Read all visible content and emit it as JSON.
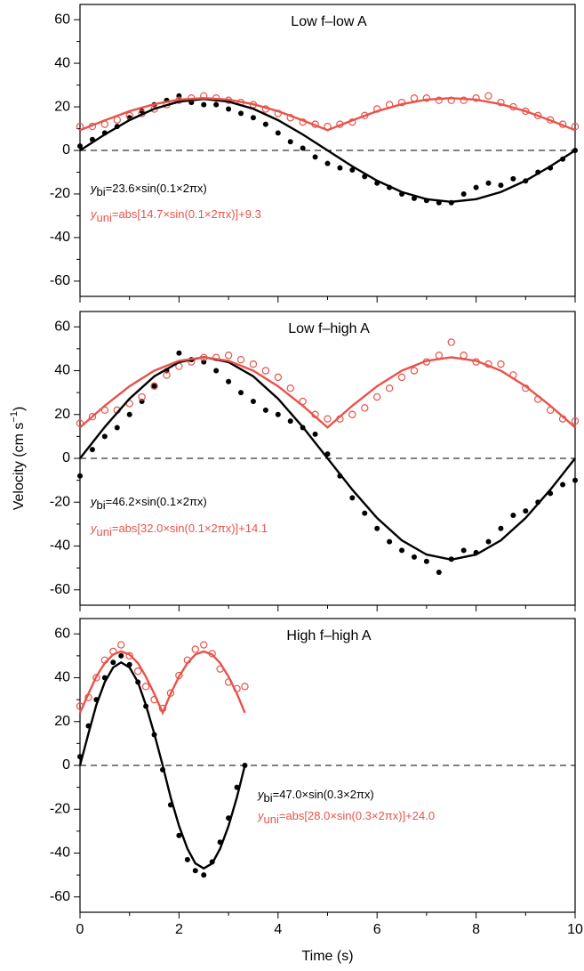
{
  "chart_data": [
    {
      "type": "scatter",
      "title": "Low f–low A",
      "xlim": [
        0,
        10
      ],
      "xticks": [
        0,
        2,
        4,
        6,
        8,
        10
      ],
      "ylim": [
        -67,
        67
      ],
      "yticks": [
        -60,
        -40,
        -20,
        0,
        20,
        40,
        60
      ],
      "annotations": [
        {
          "symbol": "y",
          "subscript": "bi",
          "text": "=23.6×sin(0.1×2πx)",
          "color": "#000000"
        },
        {
          "symbol": "y",
          "subscript": "uni",
          "text": "=abs[14.7×sin(0.1×2πx)]+9.3",
          "color": "#e8534a"
        }
      ],
      "series": [
        {
          "kind": "points",
          "marker": "filled",
          "color": "#000000",
          "x": [
            0,
            0.25,
            0.5,
            0.75,
            1,
            1.25,
            1.5,
            1.75,
            2,
            2.25,
            2.5,
            2.75,
            3,
            3.25,
            3.5,
            3.75,
            4,
            4.25,
            4.5,
            4.75,
            5,
            5.25,
            5.5,
            5.75,
            6,
            6.25,
            6.5,
            6.75,
            7,
            7.25,
            7.5,
            7.75,
            8,
            8.25,
            8.5,
            8.75,
            9,
            9.25,
            9.5,
            9.75,
            10
          ],
          "values": [
            2,
            5,
            8,
            11,
            15,
            18,
            21,
            23,
            25,
            22,
            21,
            21,
            19,
            17,
            15,
            12,
            8,
            4,
            1,
            -3,
            -6,
            -8,
            -9,
            -12,
            -15,
            -17,
            -20,
            -22,
            -23,
            -24,
            -24,
            -20,
            -17,
            -15,
            -16,
            -13,
            -14,
            -10,
            -8,
            -4,
            0
          ]
        },
        {
          "kind": "points",
          "marker": "open",
          "color": "#e8534a",
          "x": [
            0,
            0.25,
            0.5,
            0.75,
            1,
            1.25,
            1.5,
            1.75,
            2,
            2.25,
            2.5,
            2.75,
            3,
            3.25,
            3.5,
            3.75,
            4,
            4.25,
            4.5,
            4.75,
            5,
            5.25,
            5.5,
            5.75,
            6,
            6.25,
            6.5,
            6.75,
            7,
            7.25,
            7.5,
            7.75,
            8,
            8.25,
            8.5,
            8.75,
            9,
            9.25,
            9.5,
            9.75,
            10
          ],
          "values": [
            11,
            11,
            12,
            14,
            16,
            17,
            19,
            21,
            23,
            24,
            25,
            24,
            23,
            22,
            21,
            19,
            17,
            15,
            13,
            12,
            11,
            12,
            13,
            16,
            19,
            21,
            22,
            24,
            24,
            23,
            23,
            23,
            24,
            25,
            22,
            20,
            18,
            16,
            14,
            12,
            11
          ]
        },
        {
          "kind": "line",
          "color": "#000000",
          "x": [
            0,
            0.5,
            1,
            1.5,
            2,
            2.5,
            3,
            3.5,
            4,
            4.5,
            5,
            5.5,
            6,
            6.5,
            7,
            7.5,
            8,
            8.5,
            9,
            9.5,
            10
          ],
          "values": [
            0,
            7.3,
            13.9,
            19.1,
            22.4,
            23.6,
            22.4,
            19.1,
            13.9,
            7.3,
            0,
            -7.3,
            -13.9,
            -19.1,
            -22.4,
            -23.6,
            -22.4,
            -19.1,
            -13.9,
            -7.3,
            0
          ]
        },
        {
          "kind": "line",
          "color": "#e8534a",
          "x": [
            0,
            0.5,
            1,
            1.5,
            2,
            2.5,
            3,
            3.5,
            4,
            4.5,
            5,
            5.5,
            6,
            6.5,
            7,
            7.5,
            8,
            8.5,
            9,
            9.5,
            10
          ],
          "values": [
            9.3,
            13.8,
            18.0,
            21.2,
            23.3,
            24.0,
            23.3,
            21.2,
            18.0,
            13.8,
            9.3,
            13.8,
            18.0,
            21.2,
            23.3,
            24.0,
            23.3,
            21.2,
            18.0,
            13.8,
            9.3
          ]
        }
      ]
    },
    {
      "type": "scatter",
      "title": "Low f–high A",
      "xlim": [
        0,
        10
      ],
      "xticks": [
        0,
        2,
        4,
        6,
        8,
        10
      ],
      "ylim": [
        -67,
        67
      ],
      "yticks": [
        -60,
        -40,
        -20,
        0,
        20,
        40,
        60
      ],
      "annotations": [
        {
          "symbol": "y",
          "subscript": "bi",
          "text": "=46.2×sin(0.1×2πx)",
          "color": "#000000"
        },
        {
          "symbol": "y",
          "subscript": "uni",
          "text": "=abs[32.0×sin(0.1×2πx)]+14.1",
          "color": "#e8534a"
        }
      ],
      "series": [
        {
          "kind": "points",
          "marker": "filled",
          "color": "#000000",
          "x": [
            0,
            0.25,
            0.5,
            0.75,
            1,
            1.25,
            1.5,
            1.75,
            2,
            2.25,
            2.5,
            2.75,
            3,
            3.25,
            3.5,
            3.75,
            4,
            4.25,
            4.5,
            4.75,
            5,
            5.25,
            5.5,
            5.75,
            6,
            6.25,
            6.5,
            6.75,
            7,
            7.25,
            7.5,
            7.75,
            8,
            8.25,
            8.5,
            8.75,
            9,
            9.25,
            9.5,
            9.75,
            10
          ],
          "values": [
            -8,
            4,
            10,
            14,
            20,
            26,
            33,
            40,
            48,
            45,
            44,
            40,
            35,
            30,
            26,
            22,
            20,
            17,
            14,
            11,
            2,
            -8,
            -18,
            -25,
            -32,
            -38,
            -42,
            -45,
            -47,
            -52,
            -46,
            -42,
            -43,
            -38,
            -32,
            -26,
            -24,
            -20,
            -16,
            -12,
            -10
          ]
        },
        {
          "kind": "points",
          "marker": "open",
          "color": "#e8534a",
          "x": [
            0,
            0.25,
            0.5,
            0.75,
            1,
            1.25,
            1.5,
            1.75,
            2,
            2.25,
            2.5,
            2.75,
            3,
            3.25,
            3.5,
            3.75,
            4,
            4.25,
            4.5,
            4.75,
            5,
            5.25,
            5.5,
            5.75,
            6,
            6.25,
            6.5,
            6.75,
            7,
            7.25,
            7.5,
            7.75,
            8,
            8.25,
            8.5,
            8.75,
            9,
            9.25,
            9.5,
            9.75,
            10
          ],
          "values": [
            16,
            19,
            22,
            22,
            25,
            28,
            33,
            38,
            42,
            44,
            46,
            46,
            47,
            45,
            43,
            40,
            37,
            32,
            26,
            20,
            18,
            18,
            20,
            23,
            28,
            32,
            37,
            40,
            44,
            47,
            53,
            47,
            44,
            43,
            43,
            38,
            32,
            27,
            22,
            18,
            17
          ]
        },
        {
          "kind": "line",
          "color": "#000000",
          "x": [
            0,
            0.5,
            1,
            1.5,
            2,
            2.5,
            3,
            3.5,
            4,
            4.5,
            5,
            5.5,
            6,
            6.5,
            7,
            7.5,
            8,
            8.5,
            9,
            9.5,
            10
          ],
          "values": [
            0,
            14.3,
            27.2,
            37.4,
            43.9,
            46.2,
            43.9,
            37.4,
            27.2,
            14.3,
            0,
            -14.3,
            -27.2,
            -37.4,
            -43.9,
            -46.2,
            -43.9,
            -37.4,
            -27.2,
            -14.3,
            0
          ]
        },
        {
          "kind": "line",
          "color": "#e8534a",
          "x": [
            0,
            0.5,
            1,
            1.5,
            2,
            2.5,
            3,
            3.5,
            4,
            4.5,
            5,
            5.5,
            6,
            6.5,
            7,
            7.5,
            8,
            8.5,
            9,
            9.5,
            10
          ],
          "values": [
            14.1,
            24.0,
            32.9,
            40.0,
            44.5,
            46.1,
            44.5,
            40.0,
            32.9,
            24.0,
            14.1,
            24.0,
            32.9,
            40.0,
            44.5,
            46.1,
            44.5,
            40.0,
            32.9,
            24.0,
            14.1
          ]
        }
      ]
    },
    {
      "type": "scatter",
      "title": "High f–high A",
      "xlim": [
        0,
        10
      ],
      "xticks": [
        0,
        2,
        4,
        6,
        8,
        10
      ],
      "ylim": [
        -67,
        67
      ],
      "yticks": [
        -60,
        -40,
        -20,
        0,
        20,
        40,
        60
      ],
      "x_label": "Time (s)",
      "y_label": {
        "text": "Velocity (cm s",
        "superscript": "−1",
        "suffix": ")"
      },
      "annotations": [
        {
          "symbol": "y",
          "subscript": "bi",
          "text": "=47.0×sin(0.3×2πx)",
          "color": "#000000"
        },
        {
          "symbol": "y",
          "subscript": "uni",
          "text": "=abs[28.0×sin(0.3×2πx)]+24.0",
          "color": "#e8534a"
        }
      ],
      "series": [
        {
          "kind": "points",
          "marker": "filled",
          "color": "#000000",
          "x": [
            0,
            0.17,
            0.33,
            0.5,
            0.67,
            0.83,
            1,
            1.17,
            1.33,
            1.5,
            1.67,
            1.83,
            2,
            2.17,
            2.33,
            2.5,
            2.67,
            2.83,
            3,
            3.17,
            3.33
          ],
          "values": [
            4,
            18,
            30,
            40,
            47,
            50,
            46,
            38,
            27,
            14,
            -2,
            -18,
            -32,
            -43,
            -48,
            -50,
            -44,
            -35,
            -24,
            -10,
            0
          ]
        },
        {
          "kind": "points",
          "marker": "open",
          "color": "#e8534a",
          "x": [
            0,
            0.17,
            0.33,
            0.5,
            0.67,
            0.83,
            1,
            1.17,
            1.33,
            1.5,
            1.67,
            1.83,
            2,
            2.17,
            2.33,
            2.5,
            2.67,
            2.83,
            3,
            3.17,
            3.33
          ],
          "values": [
            27,
            31,
            40,
            48,
            52,
            55,
            50,
            43,
            36,
            30,
            26,
            33,
            41,
            48,
            53,
            55,
            51,
            44,
            38,
            35,
            36
          ]
        },
        {
          "kind": "line",
          "color": "#000000",
          "x": [
            0,
            0.17,
            0.33,
            0.5,
            0.67,
            0.83,
            1,
            1.17,
            1.33,
            1.5,
            1.67,
            1.83,
            2,
            2.17,
            2.33,
            2.5,
            2.67,
            2.83,
            3,
            3.17,
            3.33
          ],
          "values": [
            0,
            14.5,
            27.6,
            38.0,
            44.7,
            47.0,
            44.7,
            38.0,
            27.6,
            14.5,
            0,
            -14.5,
            -27.6,
            -38.0,
            -44.7,
            -47.0,
            -44.7,
            -38.0,
            -27.6,
            -14.5,
            0
          ]
        },
        {
          "kind": "line",
          "color": "#e8534a",
          "x": [
            0,
            0.17,
            0.33,
            0.5,
            0.67,
            0.83,
            1,
            1.17,
            1.33,
            1.5,
            1.67,
            1.83,
            2,
            2.17,
            2.33,
            2.5,
            2.67,
            2.83,
            3,
            3.17,
            3.33
          ],
          "values": [
            24,
            32.7,
            40.5,
            46.7,
            50.6,
            52.0,
            50.6,
            46.7,
            40.5,
            32.7,
            24,
            32.7,
            40.5,
            46.7,
            50.6,
            52.0,
            50.6,
            46.7,
            40.5,
            32.7,
            24
          ]
        }
      ]
    }
  ]
}
